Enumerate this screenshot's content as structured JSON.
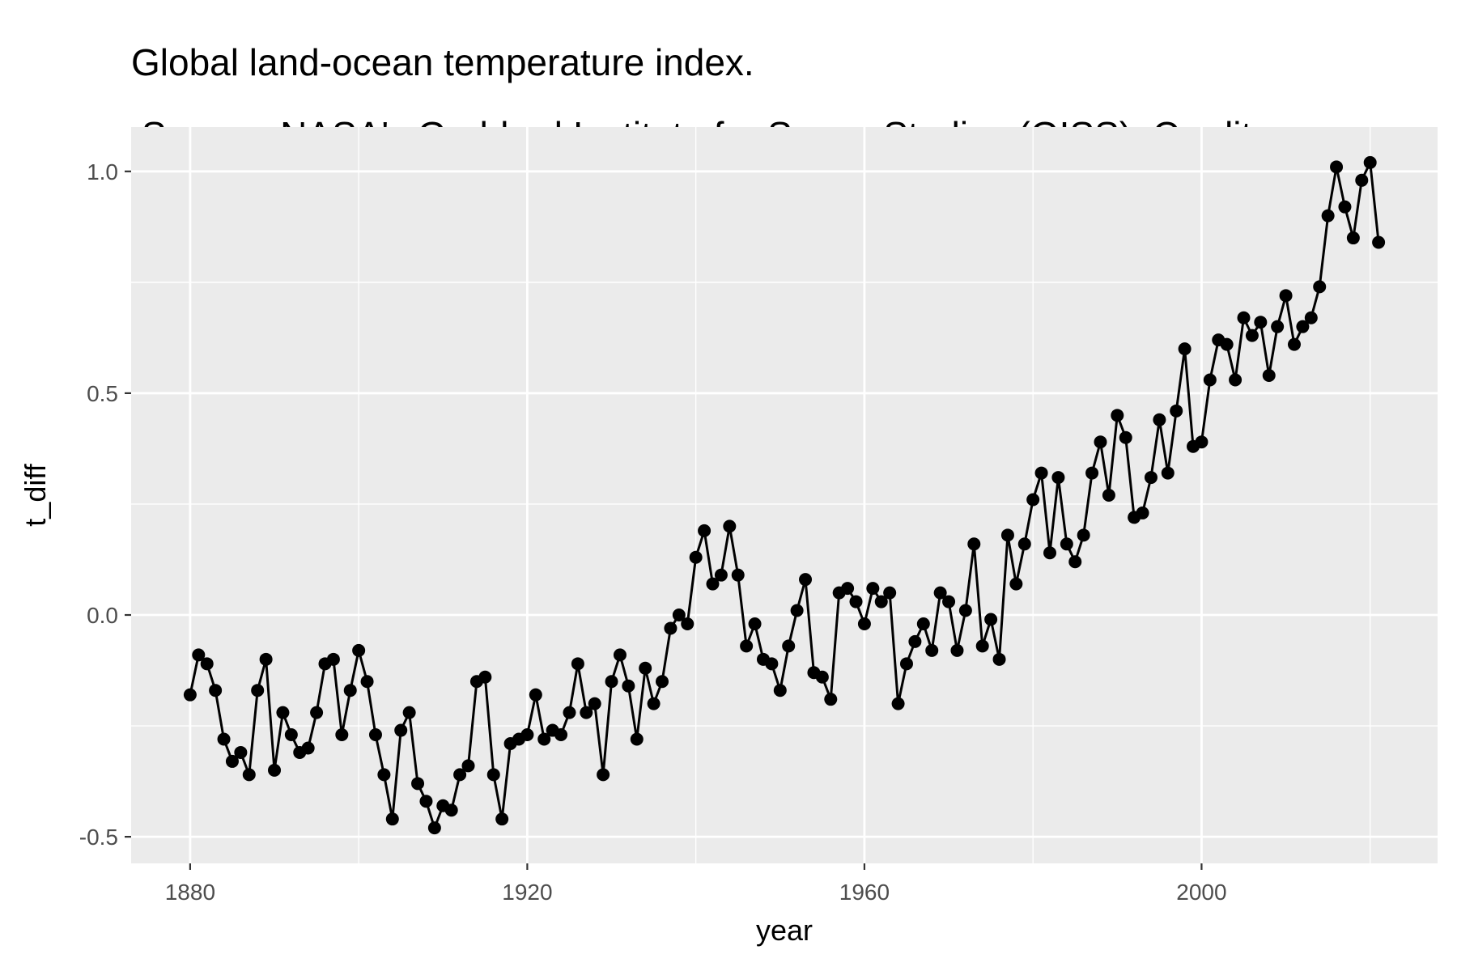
{
  "chart_data": {
    "type": "line",
    "title": "Global land-ocean temperature index.",
    "subtitle": " Source: NASA's Goddard Institute for Space Studies (GISS). Credit",
    "xlabel": "year",
    "ylabel": "t_diff",
    "xlim": [
      1873,
      2028
    ],
    "ylim": [
      -0.56,
      1.1
    ],
    "xticks": [
      1880,
      1920,
      1960,
      2000
    ],
    "xtick_labels": [
      "1880",
      "1920",
      "1960",
      "2000"
    ],
    "yticks": [
      -0.5,
      0.0,
      0.5,
      1.0
    ],
    "ytick_labels": [
      "-0.5",
      "0.0",
      "0.5",
      "1.0"
    ],
    "grid": true,
    "legend": "none",
    "colors": {
      "panel": "#ebebeb",
      "grid": "#ffffff",
      "line": "#000000",
      "point": "#000000"
    },
    "x": [
      1880,
      1881,
      1882,
      1883,
      1884,
      1885,
      1886,
      1887,
      1888,
      1889,
      1890,
      1891,
      1892,
      1893,
      1894,
      1895,
      1896,
      1897,
      1898,
      1899,
      1900,
      1901,
      1902,
      1903,
      1904,
      1905,
      1906,
      1907,
      1908,
      1909,
      1910,
      1911,
      1912,
      1913,
      1914,
      1915,
      1916,
      1917,
      1918,
      1919,
      1920,
      1921,
      1922,
      1923,
      1924,
      1925,
      1926,
      1927,
      1928,
      1929,
      1930,
      1931,
      1932,
      1933,
      1934,
      1935,
      1936,
      1937,
      1938,
      1939,
      1940,
      1941,
      1942,
      1943,
      1944,
      1945,
      1946,
      1947,
      1948,
      1949,
      1950,
      1951,
      1952,
      1953,
      1954,
      1955,
      1956,
      1957,
      1958,
      1959,
      1960,
      1961,
      1962,
      1963,
      1964,
      1965,
      1966,
      1967,
      1968,
      1969,
      1970,
      1971,
      1972,
      1973,
      1974,
      1975,
      1976,
      1977,
      1978,
      1979,
      1980,
      1981,
      1982,
      1983,
      1984,
      1985,
      1986,
      1987,
      1988,
      1989,
      1990,
      1991,
      1992,
      1993,
      1994,
      1995,
      1996,
      1997,
      1998,
      1999,
      2000,
      2001,
      2002,
      2003,
      2004,
      2005,
      2006,
      2007,
      2008,
      2009,
      2010,
      2011,
      2012,
      2013,
      2014,
      2015,
      2016,
      2017,
      2018,
      2019,
      2020,
      2021
    ],
    "y": [
      -0.18,
      -0.09,
      -0.11,
      -0.17,
      -0.28,
      -0.33,
      -0.31,
      -0.36,
      -0.17,
      -0.1,
      -0.35,
      -0.22,
      -0.27,
      -0.31,
      -0.3,
      -0.22,
      -0.11,
      -0.1,
      -0.27,
      -0.17,
      -0.08,
      -0.15,
      -0.27,
      -0.36,
      -0.46,
      -0.26,
      -0.22,
      -0.38,
      -0.42,
      -0.48,
      -0.43,
      -0.44,
      -0.36,
      -0.34,
      -0.15,
      -0.14,
      -0.36,
      -0.46,
      -0.29,
      -0.28,
      -0.27,
      -0.18,
      -0.28,
      -0.26,
      -0.27,
      -0.22,
      -0.11,
      -0.22,
      -0.2,
      -0.36,
      -0.15,
      -0.09,
      -0.16,
      -0.28,
      -0.12,
      -0.2,
      -0.15,
      -0.03,
      0.0,
      -0.02,
      0.13,
      0.19,
      0.07,
      0.09,
      0.2,
      0.09,
      -0.07,
      -0.02,
      -0.1,
      -0.11,
      -0.17,
      -0.07,
      0.01,
      0.08,
      -0.13,
      -0.14,
      -0.19,
      0.05,
      0.06,
      0.03,
      -0.02,
      0.06,
      0.03,
      0.05,
      -0.2,
      -0.11,
      -0.06,
      -0.02,
      -0.08,
      0.05,
      0.03,
      -0.08,
      0.01,
      0.16,
      -0.07,
      -0.01,
      -0.1,
      0.18,
      0.07,
      0.16,
      0.26,
      0.32,
      0.14,
      0.31,
      0.16,
      0.12,
      0.18,
      0.32,
      0.39,
      0.27,
      0.45,
      0.4,
      0.22,
      0.23,
      0.31,
      0.44,
      0.32,
      0.46,
      0.6,
      0.38,
      0.39,
      0.53,
      0.62,
      0.61,
      0.53,
      0.67,
      0.63,
      0.66,
      0.54,
      0.65,
      0.72,
      0.61,
      0.65,
      0.67,
      0.74,
      0.9,
      1.01,
      0.92,
      0.85,
      0.98,
      1.02,
      0.84
    ]
  }
}
